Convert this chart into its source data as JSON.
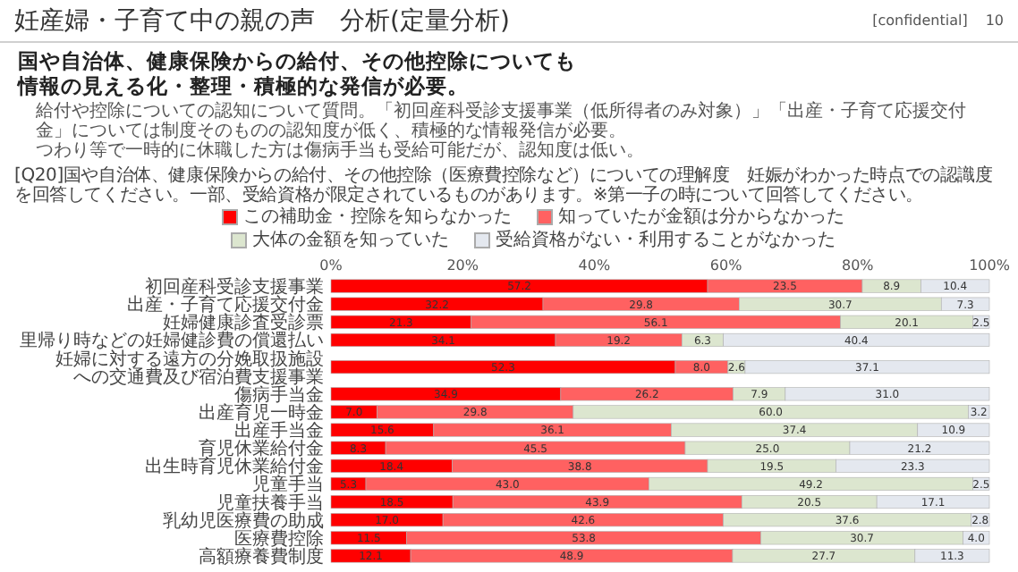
{
  "chart_data": {
    "type": "bar",
    "orientation": "horizontal",
    "stacked": true,
    "title": "妊産婦・子育て中の親の声　分析(定量分析)",
    "subtitle": "国や自治体、健康保険からの給付、その他控除についても情報の見える化・整理・積極的な発信が必要。",
    "annotations": [
      "給付や控除についての認知について質問。「初回産科受診支援事業（低所得者のみ対象）」「出産・子育て応援交付金」については制度そのものの認知度が低く、積極的な情報発信が必要。",
      "つわり等で一時的に休職した方は傷病手当も受給可能だが、認知度は低い。",
      "[Q20]国や自治体、健康保険からの給付、その他控除（医療費控除など）についての理解度　妊娠がわかった時点での認識度を回答してください。一部、受給資格が限定されているものがあります。※第一子の時について回答してください。",
      "[confidential]",
      "10"
    ],
    "categories": [
      "初回産科受診支援事業",
      "出産・子育て応援交付金",
      "妊婦健康診査受診票",
      "里帰り時などの妊婦健診費の償還払い",
      "妊婦に対する遠方の分娩取扱施設への交通費及び宿泊費支援事業",
      "傷病手当金",
      "出産育児一時金",
      "出産手当金",
      "育児休業給付金",
      "出生時育児休業給付金",
      "児童手当",
      "児童扶養手当",
      "乳幼児医療費の助成",
      "医療費控除",
      "高額療養費制度"
    ],
    "series": [
      {
        "name": "この補助金・控除を知らなかった",
        "color": "#ff0000",
        "values": [
          57.2,
          32.2,
          21.3,
          34.1,
          52.3,
          34.9,
          7.0,
          15.6,
          8.3,
          18.4,
          5.3,
          18.5,
          17.0,
          11.5,
          12.1
        ],
        "value_labels": [
          "57.2",
          "32.2",
          "21.3",
          "34.1",
          "52.3",
          "34.9",
          "7.0",
          "15.6",
          "8.3",
          "18.4",
          "5.3",
          "18.5",
          "17.0",
          "11.5",
          "12.1"
        ]
      },
      {
        "name": "知っていたが金額は分からなかった",
        "color": "#ff6161",
        "values": [
          23.5,
          29.8,
          56.1,
          19.2,
          8.0,
          26.2,
          29.8,
          36.1,
          45.5,
          38.8,
          43.0,
          43.9,
          42.6,
          53.8,
          48.9
        ],
        "value_labels": [
          "23.5",
          "29.8",
          "56.1",
          "19.2",
          "8.0",
          "26.2",
          "29.8",
          "36.1",
          "45.5",
          "38.8",
          "43.0",
          "43.9",
          "42.6",
          "53.8",
          "48.9"
        ]
      },
      {
        "name": "大体の金額を知っていた",
        "color": "#dce6cf",
        "values": [
          8.9,
          30.7,
          20.1,
          6.3,
          2.6,
          7.9,
          60.0,
          37.4,
          25.0,
          19.5,
          49.2,
          20.5,
          37.6,
          30.7,
          27.7
        ],
        "value_labels": [
          "8.9",
          "30.7",
          "20.1",
          "6.3",
          "2.6",
          "7.9",
          "60.0",
          "37.4",
          "25.0",
          "19.5",
          "49.2",
          "20.5",
          "37.6",
          "30.7",
          "27.7"
        ]
      },
      {
        "name": "受給資格がない・利用することがなかった",
        "color": "#e4e8ef",
        "values": [
          10.4,
          7.3,
          2.5,
          40.4,
          37.1,
          31.0,
          3.2,
          10.9,
          21.2,
          23.3,
          2.5,
          17.1,
          2.8,
          4.0,
          11.3
        ],
        "value_labels": [
          "10.4",
          "7.3",
          "2.5",
          "40.4",
          "37.1",
          "31.0",
          "3.2",
          "10.9",
          "21.2",
          "23.3",
          "2.5",
          "17.1",
          "2.8",
          "4.0",
          "11.3"
        ]
      }
    ],
    "xlim": [
      0,
      100
    ],
    "xticks": [
      {
        "value": 0,
        "label": "0%"
      },
      {
        "value": 20,
        "label": "20%"
      },
      {
        "value": 40,
        "label": "40%"
      },
      {
        "value": 60,
        "label": "60%"
      },
      {
        "value": 80,
        "label": "80%"
      },
      {
        "value": 100,
        "label": "100%"
      }
    ],
    "legend": "top"
  }
}
